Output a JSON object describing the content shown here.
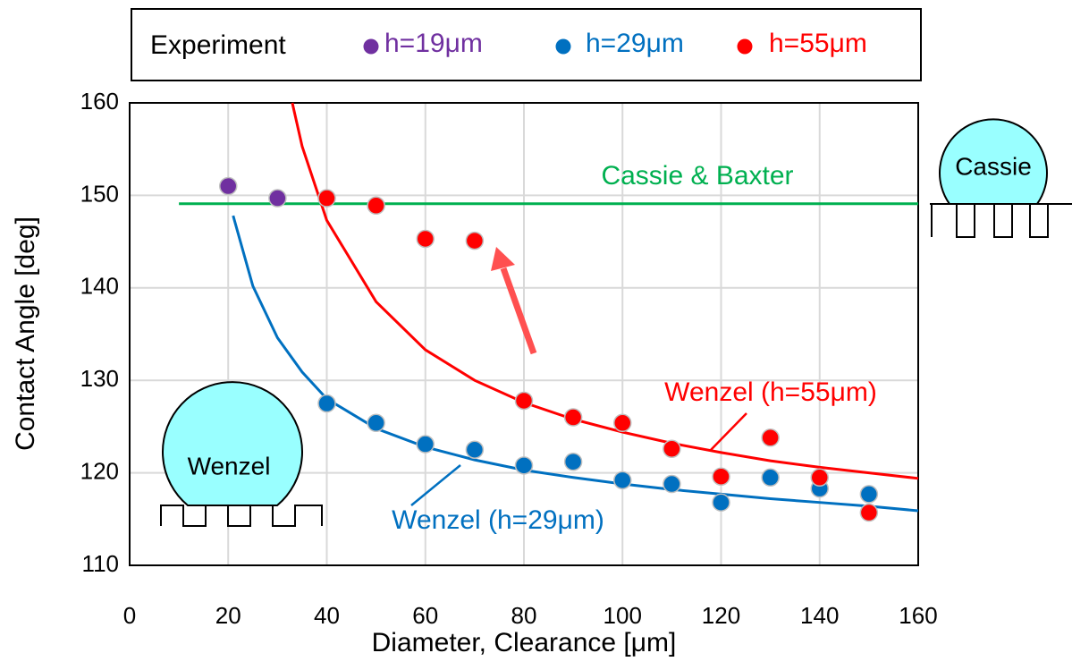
{
  "chart_data": {
    "type": "scatter",
    "xlabel": "Diameter, Clearance  [μm]",
    "ylabel": "Contact Angle [deg]",
    "legend_title": "Experiment",
    "xlim": [
      0,
      160
    ],
    "xticks": [
      0,
      20,
      40,
      60,
      80,
      100,
      120,
      140,
      160
    ],
    "ylim": [
      110,
      160
    ],
    "yticks": [
      110,
      120,
      130,
      140,
      150,
      160
    ],
    "grid": true,
    "series": [
      {
        "name": "h=19μm",
        "color": "#7030a0",
        "x": [
          20,
          30
        ],
        "values": [
          151.0,
          149.7
        ]
      },
      {
        "name": "h=29μm",
        "color": "#0070c0",
        "x": [
          40,
          50,
          60,
          70,
          80,
          90,
          100,
          110,
          120,
          130,
          140,
          150
        ],
        "values": [
          127.5,
          125.4,
          123.1,
          122.5,
          120.8,
          121.2,
          119.2,
          118.8,
          116.8,
          119.5,
          118.3,
          117.7
        ]
      },
      {
        "name": "h=55μm",
        "color": "#ff0000",
        "x": [
          40,
          50,
          60,
          70,
          80,
          90,
          100,
          110,
          120,
          130,
          140,
          150
        ],
        "values": [
          149.7,
          148.9,
          145.3,
          145.1,
          127.8,
          126.0,
          125.4,
          122.6,
          119.6,
          123.8,
          119.5,
          115.7
        ]
      }
    ],
    "curves": [
      {
        "label": "Cassie & Baxter",
        "color": "#00b050",
        "x": [
          10,
          160
        ],
        "values": [
          149.1,
          149.1
        ]
      },
      {
        "label": "Wenzel (h=55μm)",
        "color": "#ff0000",
        "x": [
          33,
          35,
          40,
          50,
          60,
          70,
          80,
          90,
          100,
          110,
          120,
          130,
          140,
          150,
          160
        ],
        "values": [
          160,
          155.3,
          147.3,
          138.5,
          133.3,
          130,
          127.6,
          125.8,
          124.4,
          123.2,
          122.2,
          121.3,
          120.6,
          120,
          119.4
        ]
      },
      {
        "label": "Wenzel (h=29μm)",
        "color": "#0070c0",
        "x": [
          21,
          25,
          30,
          35,
          40,
          50,
          60,
          70,
          80,
          90,
          100,
          110,
          120,
          130,
          140,
          150,
          160
        ],
        "values": [
          147.8,
          140.2,
          134.6,
          130.9,
          128,
          124.8,
          122.8,
          121.4,
          120.3,
          119.5,
          118.8,
          118.2,
          117.7,
          117.2,
          116.8,
          116.4,
          115.9
        ]
      }
    ],
    "drop_labels": [
      "Wenzel",
      "Cassie"
    ]
  }
}
